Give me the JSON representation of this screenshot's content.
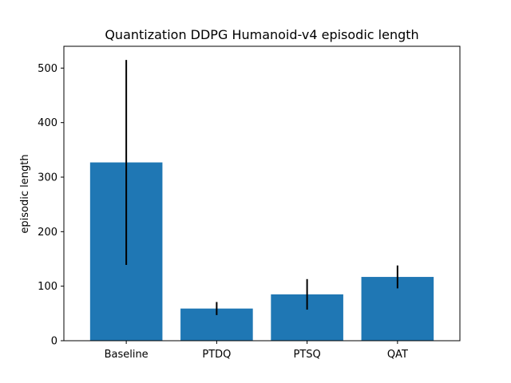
{
  "chart_data": {
    "type": "bar",
    "title": "Quantization DDPG Humanoid-v4 episodic length",
    "xlabel": "",
    "ylabel": "episodic length",
    "categories": [
      "Baseline",
      "PTDQ",
      "PTSQ",
      "QAT"
    ],
    "values": [
      327,
      59,
      85,
      117
    ],
    "errors": [
      188,
      12,
      28,
      21
    ],
    "ylim": [
      0,
      540
    ],
    "yticks": [
      0,
      100,
      200,
      300,
      400,
      500
    ],
    "grid": false,
    "colors": {
      "bar": "#1f77b4",
      "error": "#000000"
    }
  }
}
